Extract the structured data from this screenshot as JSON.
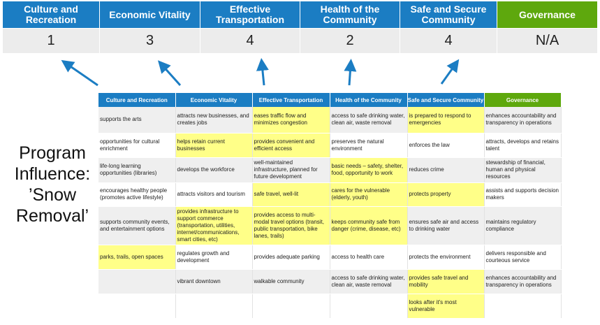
{
  "colors": {
    "accent": "#1b7dc3",
    "governance": "#5ea80d",
    "highlight": "#ffff88"
  },
  "categories": [
    {
      "label": "Culture and Recreation",
      "score": "1"
    },
    {
      "label": "Economic Vitality",
      "score": "3"
    },
    {
      "label": "Effective Transportation",
      "score": "4"
    },
    {
      "label": "Health of the Community",
      "score": "2"
    },
    {
      "label": "Safe and Secure Community",
      "score": "4"
    },
    {
      "label": "Governance",
      "score": "N/A"
    }
  ],
  "title_lines": [
    "Program",
    "Influence:",
    "’Snow",
    "Removal’"
  ],
  "table": {
    "headers": [
      "Culture and Recreation",
      "Economic Vitality",
      "Effective Transportation",
      "Health of the Community",
      "Safe and Secure Community",
      "Governance"
    ],
    "rows": [
      [
        {
          "t": "supports the arts"
        },
        {
          "t": "attracts new businesses, and creates jobs"
        },
        {
          "t": "eases traffic flow and minimizes congestion",
          "h": true
        },
        {
          "t": "access to safe drinking water, clean air, waste removal"
        },
        {
          "t": "is prepared to respond to emergencies",
          "h": true
        },
        {
          "t": "enhances accountability and transparency in operations"
        }
      ],
      [
        {
          "t": "opportunities for cultural enrichment"
        },
        {
          "t": "helps retain current businesses",
          "h": true
        },
        {
          "t": "provides convenient and efficient access",
          "h": true
        },
        {
          "t": "preserves the natural environment"
        },
        {
          "t": "enforces the law"
        },
        {
          "t": "attracts, develops and retains talent"
        }
      ],
      [
        {
          "t": "life-long learning opportunities (libraries)"
        },
        {
          "t": "develops the workforce"
        },
        {
          "t": "well-maintained infrastructure, planned for future development"
        },
        {
          "t": "basic needs – safety, shelter, food, opportunity to work",
          "h": true
        },
        {
          "t": "reduces crime"
        },
        {
          "t": "stewardship of financial, human and physical resources"
        }
      ],
      [
        {
          "t": "encourages healthy people (promotes active lifestyle)"
        },
        {
          "t": "attracts visitors and tourism"
        },
        {
          "t": "safe travel, well-lit",
          "h": true
        },
        {
          "t": "cares for the vulnerable (elderly, youth)",
          "h": true
        },
        {
          "t": "protects property",
          "h": true
        },
        {
          "t": "assists and supports decision makers"
        }
      ],
      [
        {
          "t": "supports community events, and entertainment options"
        },
        {
          "t": "provides infrastructure to support commerce (transportation, utilities, internet/communications, smart cities, etc)",
          "h": true
        },
        {
          "t": "provides access to multi-modal travel options (transit, public transportation, bike lanes, trails)",
          "h": true
        },
        {
          "t": "keeps community safe from danger (crime, disease, etc)",
          "h": true
        },
        {
          "t": "ensures safe air and access to drinking water"
        },
        {
          "t": "maintains regulatory compliance"
        }
      ],
      [
        {
          "t": "parks, trails, open spaces",
          "h": true
        },
        {
          "t": "regulates growth and development"
        },
        {
          "t": "provides adequate parking"
        },
        {
          "t": "access to health care"
        },
        {
          "t": "protects the environment"
        },
        {
          "t": "delivers responsible and courteous service"
        }
      ],
      [
        {
          "t": ""
        },
        {
          "t": "vibrant downtown"
        },
        {
          "t": "walkable community"
        },
        {
          "t": "access to safe drinking water, clean air, waste removal"
        },
        {
          "t": "provides safe travel and mobility",
          "h": true
        },
        {
          "t": "enhances accountability and transparency in operations"
        }
      ],
      [
        {
          "t": ""
        },
        {
          "t": ""
        },
        {
          "t": ""
        },
        {
          "t": ""
        },
        {
          "t": "looks after it's most vulnerable",
          "h": true
        },
        {
          "t": ""
        }
      ]
    ]
  }
}
